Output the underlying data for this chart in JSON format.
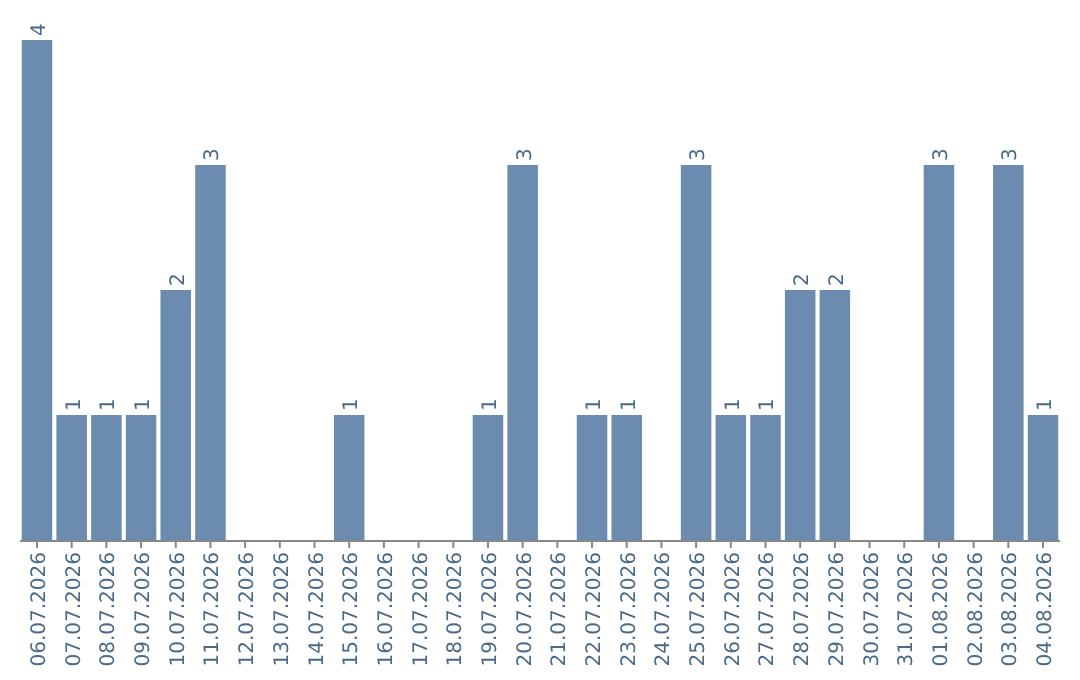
{
  "chart_data": {
    "type": "bar",
    "categories": [
      "06.07.2026",
      "07.07.2026",
      "08.07.2026",
      "09.07.2026",
      "10.07.2026",
      "11.07.2026",
      "12.07.2026",
      "13.07.2026",
      "14.07.2026",
      "15.07.2026",
      "16.07.2026",
      "17.07.2026",
      "18.07.2026",
      "19.07.2026",
      "20.07.2026",
      "21.07.2026",
      "22.07.2026",
      "23.07.2026",
      "24.07.2026",
      "25.07.2026",
      "26.07.2026",
      "27.07.2026",
      "28.07.2026",
      "29.07.2026",
      "30.07.2026",
      "31.07.2026",
      "01.08.2026",
      "02.08.2026",
      "03.08.2026",
      "04.08.2026"
    ],
    "values": [
      4,
      1,
      1,
      1,
      2,
      3,
      0,
      0,
      0,
      1,
      0,
      0,
      0,
      1,
      3,
      0,
      1,
      1,
      0,
      3,
      1,
      1,
      2,
      2,
      0,
      0,
      3,
      0,
      3,
      1
    ],
    "value_labels": [
      "4",
      "1",
      "1",
      "1",
      "2",
      "3",
      null,
      null,
      null,
      "1",
      null,
      null,
      null,
      "1",
      "3",
      null,
      "1",
      "1",
      null,
      "3",
      "1",
      "1",
      "2",
      "2",
      null,
      null,
      "3",
      null,
      "3",
      "1"
    ],
    "color": "#6b8cae"
  }
}
